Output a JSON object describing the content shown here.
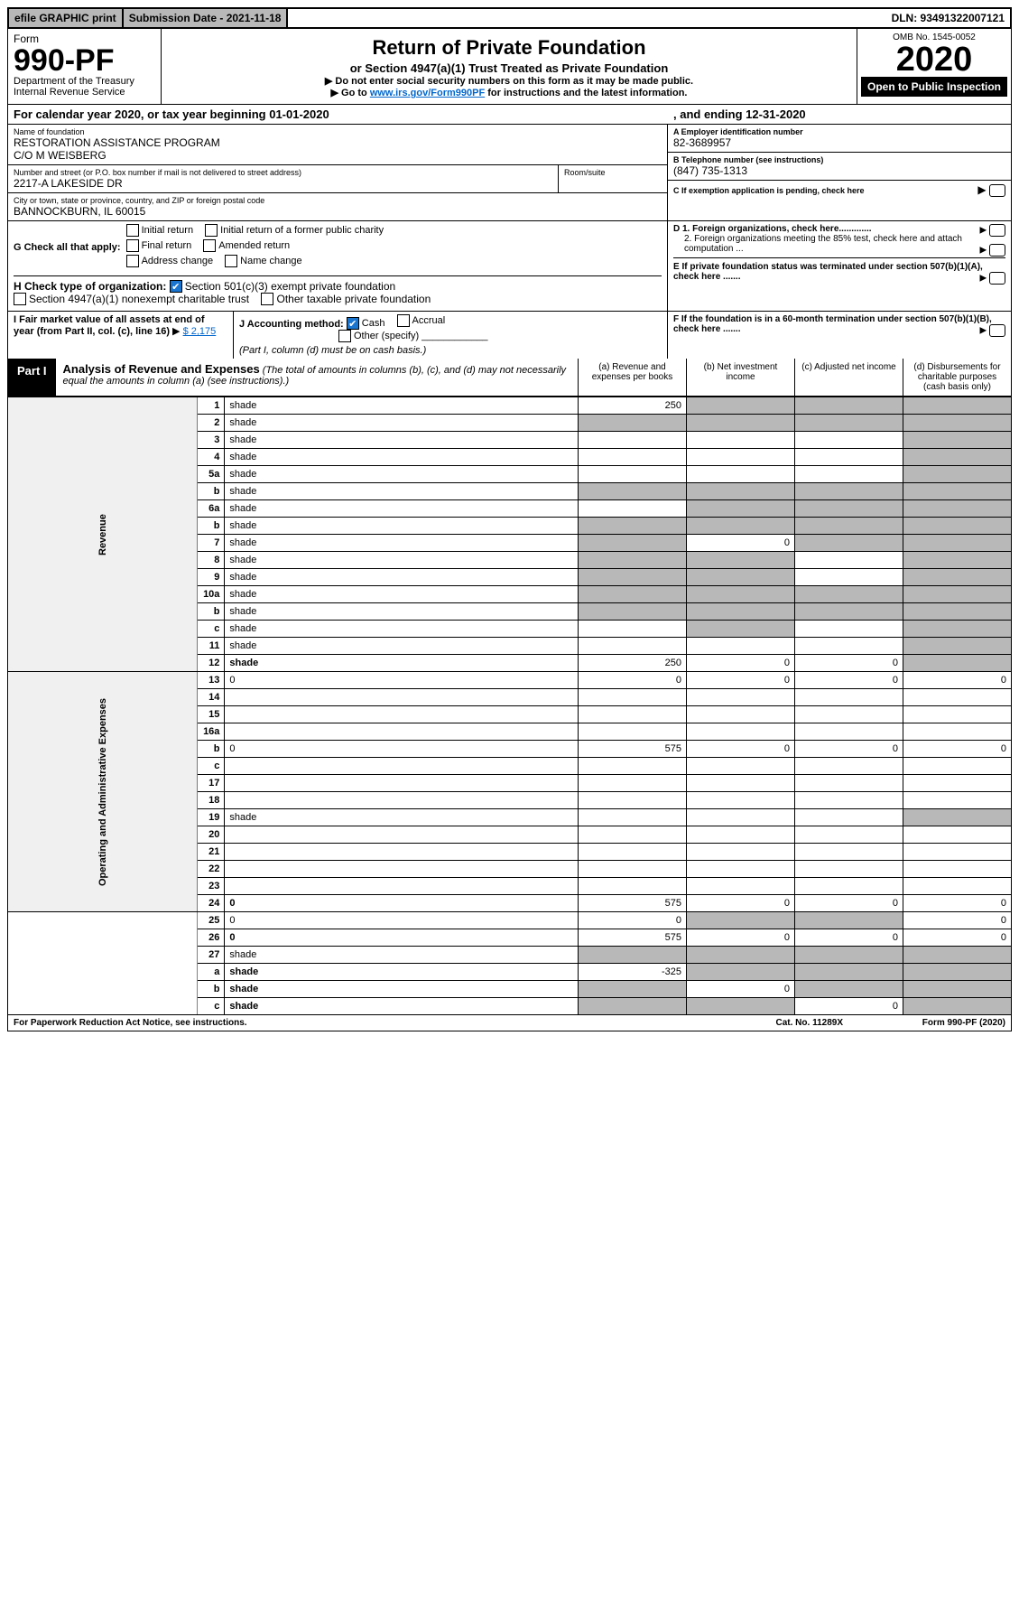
{
  "topbar": {
    "efile": "efile GRAPHIC print",
    "submission": "Submission Date - 2021-11-18",
    "dln": "DLN: 93491322007121"
  },
  "header": {
    "form": "Form",
    "number": "990-PF",
    "dept": "Department of the Treasury",
    "irs": "Internal Revenue Service",
    "title": "Return of Private Foundation",
    "subtitle": "or Section 4947(a)(1) Trust Treated as Private Foundation",
    "note1": "▶ Do not enter social security numbers on this form as it may be made public.",
    "note2_prefix": "▶ Go to ",
    "note2_link": "www.irs.gov/Form990PF",
    "note2_suffix": " for instructions and the latest information.",
    "omb": "OMB No. 1545-0052",
    "year": "2020",
    "open": "Open to Public Inspection"
  },
  "cal_year": {
    "text": "For calendar year 2020, or tax year beginning 01-01-2020",
    "ending": ", and ending 12-31-2020"
  },
  "foundation": {
    "name_label": "Name of foundation",
    "name": "RESTORATION ASSISTANCE PROGRAM",
    "co": "C/O M WEISBERG",
    "addr_label": "Number and street (or P.O. box number if mail is not delivered to street address)",
    "address": "2217-A LAKESIDE DR",
    "room_label": "Room/suite",
    "city_label": "City or town, state or province, country, and ZIP or foreign postal code",
    "city": "BANNOCKBURN, IL  60015",
    "ein_label": "A Employer identification number",
    "ein": "82-3689957",
    "phone_label": "B Telephone number (see instructions)",
    "phone": "(847) 735-1313",
    "c_label": "C  If exemption application is pending, check here"
  },
  "sectionG": {
    "label": "G Check all that apply:",
    "opts": [
      "Initial return",
      "Final return",
      "Address change",
      "Initial return of a former public charity",
      "Amended return",
      "Name change"
    ]
  },
  "sectionH": {
    "label": "H Check type of organization:",
    "opt1": "Section 501(c)(3) exempt private foundation",
    "opt2": "Section 4947(a)(1) nonexempt charitable trust",
    "opt3": "Other taxable private foundation"
  },
  "sectionI": {
    "label": "I Fair market value of all assets at end of year (from Part II, col. (c), line 16)",
    "value": "$  2,175"
  },
  "sectionJ": {
    "label": "J Accounting method:",
    "opts": [
      "Cash",
      "Accrual",
      "Other (specify)"
    ],
    "note": "(Part I, column (d) must be on cash basis.)"
  },
  "sectionD": {
    "d1": "D 1. Foreign organizations, check here.............",
    "d2": "2. Foreign organizations meeting the 85% test, check here and attach computation ..."
  },
  "sectionE": "E  If private foundation status was terminated under section 507(b)(1)(A), check here .......",
  "sectionF": "F  If the foundation is in a 60-month termination under section 507(b)(1)(B), check here .......",
  "part1": {
    "label": "Part I",
    "title": "Analysis of Revenue and Expenses",
    "desc": "(The total of amounts in columns (b), (c), and (d) may not necessarily equal the amounts in column (a) (see instructions).)",
    "col_a": "(a) Revenue and expenses per books",
    "col_b": "(b) Net investment income",
    "col_c": "(c) Adjusted net income",
    "col_d": "(d) Disbursements for charitable purposes (cash basis only)"
  },
  "revenue_label": "Revenue",
  "expenses_label": "Operating and Administrative Expenses",
  "rows": [
    {
      "n": "1",
      "d": "shade",
      "a": "250",
      "b": "shade",
      "c": "shade"
    },
    {
      "n": "2",
      "d": "shade",
      "a": "shade",
      "b": "shade",
      "c": "shade"
    },
    {
      "n": "3",
      "d": "shade",
      "a": "",
      "b": "",
      "c": ""
    },
    {
      "n": "4",
      "d": "shade",
      "a": "",
      "b": "",
      "c": ""
    },
    {
      "n": "5a",
      "d": "shade",
      "a": "",
      "b": "",
      "c": ""
    },
    {
      "n": "b",
      "d": "shade",
      "a": "shade",
      "b": "shade",
      "c": "shade"
    },
    {
      "n": "6a",
      "d": "shade",
      "a": "",
      "b": "shade",
      "c": "shade"
    },
    {
      "n": "b",
      "d": "shade",
      "a": "shade",
      "b": "shade",
      "c": "shade"
    },
    {
      "n": "7",
      "d": "shade",
      "a": "shade",
      "b": "0",
      "c": "shade"
    },
    {
      "n": "8",
      "d": "shade",
      "a": "shade",
      "b": "shade",
      "c": ""
    },
    {
      "n": "9",
      "d": "shade",
      "a": "shade",
      "b": "shade",
      "c": ""
    },
    {
      "n": "10a",
      "d": "shade",
      "a": "shade",
      "b": "shade",
      "c": "shade"
    },
    {
      "n": "b",
      "d": "shade",
      "a": "shade",
      "b": "shade",
      "c": "shade"
    },
    {
      "n": "c",
      "d": "shade",
      "a": "",
      "b": "shade",
      "c": ""
    },
    {
      "n": "11",
      "d": "shade",
      "a": "",
      "b": "",
      "c": ""
    },
    {
      "n": "12",
      "d": "shade",
      "bold": true,
      "a": "250",
      "b": "0",
      "c": "0"
    },
    {
      "n": "13",
      "d": "0",
      "a": "0",
      "b": "0",
      "c": "0"
    },
    {
      "n": "14",
      "d": "",
      "a": "",
      "b": "",
      "c": ""
    },
    {
      "n": "15",
      "d": "",
      "a": "",
      "b": "",
      "c": ""
    },
    {
      "n": "16a",
      "d": "",
      "a": "",
      "b": "",
      "c": ""
    },
    {
      "n": "b",
      "d": "0",
      "a": "575",
      "b": "0",
      "c": "0"
    },
    {
      "n": "c",
      "d": "",
      "a": "",
      "b": "",
      "c": ""
    },
    {
      "n": "17",
      "d": "",
      "a": "",
      "b": "",
      "c": ""
    },
    {
      "n": "18",
      "d": "",
      "a": "",
      "b": "",
      "c": ""
    },
    {
      "n": "19",
      "d": "shade",
      "a": "",
      "b": "",
      "c": ""
    },
    {
      "n": "20",
      "d": "",
      "a": "",
      "b": "",
      "c": ""
    },
    {
      "n": "21",
      "d": "",
      "a": "",
      "b": "",
      "c": ""
    },
    {
      "n": "22",
      "d": "",
      "a": "",
      "b": "",
      "c": ""
    },
    {
      "n": "23",
      "d": "",
      "a": "",
      "b": "",
      "c": ""
    },
    {
      "n": "24",
      "d": "0",
      "bold": true,
      "a": "575",
      "b": "0",
      "c": "0"
    },
    {
      "n": "25",
      "d": "0",
      "a": "0",
      "b": "shade",
      "c": "shade"
    },
    {
      "n": "26",
      "d": "0",
      "bold": true,
      "a": "575",
      "b": "0",
      "c": "0"
    },
    {
      "n": "27",
      "d": "shade",
      "a": "shade",
      "b": "shade",
      "c": "shade"
    },
    {
      "n": "a",
      "d": "shade",
      "bold": true,
      "a": "-325",
      "b": "shade",
      "c": "shade"
    },
    {
      "n": "b",
      "d": "shade",
      "bold": true,
      "a": "shade",
      "b": "0",
      "c": "shade"
    },
    {
      "n": "c",
      "d": "shade",
      "bold": true,
      "a": "shade",
      "b": "shade",
      "c": "0"
    }
  ],
  "footer": {
    "left": "For Paperwork Reduction Act Notice, see instructions.",
    "center": "Cat. No. 11289X",
    "right": "Form 990-PF (2020)"
  }
}
